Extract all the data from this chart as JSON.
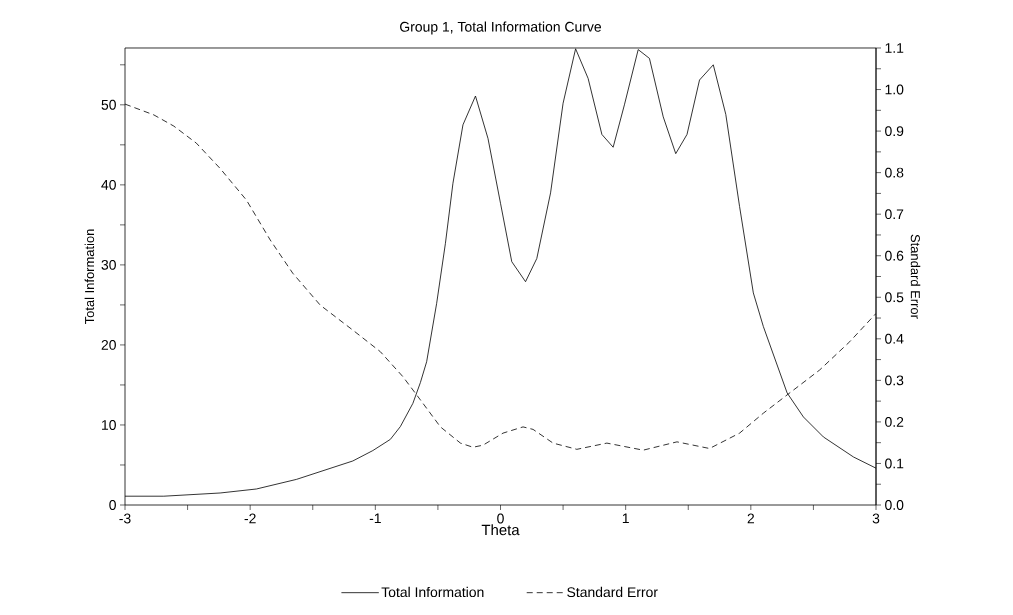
{
  "chart_data": {
    "type": "line",
    "title": "Group 1, Total Information Curve",
    "xlabel": "Theta",
    "ylabel": "Total Information",
    "y2label": "Standard Error",
    "xlim": [
      -3,
      3
    ],
    "xticks": [
      -3,
      {
        "value": -2.5,
        "label": null
      },
      -2,
      {
        "value": -1.5,
        "label": null
      },
      -1,
      {
        "value": -0.5,
        "label": null
      },
      0,
      {
        "value": 0.5,
        "label": null
      },
      1,
      {
        "value": 1.5,
        "label": null
      },
      2,
      {
        "value": 2.5,
        "label": null
      },
      3
    ],
    "ylim": [
      0,
      57.1
    ],
    "yticks": [
      0,
      {
        "value": 5,
        "label": null
      },
      10,
      {
        "value": 15,
        "label": null
      },
      20,
      {
        "value": 25,
        "label": null
      },
      30,
      {
        "value": 35,
        "label": null
      },
      40,
      {
        "value": 45,
        "label": null
      },
      50,
      {
        "value": 55,
        "label": null
      }
    ],
    "y2lim": [
      0,
      1.1
    ],
    "y2ticks": [
      {
        "value": 0,
        "label": "0.0"
      },
      {
        "value": 0.05,
        "label": null
      },
      0.1,
      {
        "value": 0.15,
        "label": null
      },
      0.2,
      {
        "value": 0.25,
        "label": null
      },
      0.3,
      {
        "value": 0.35,
        "label": null
      },
      0.4,
      {
        "value": 0.45,
        "label": null
      },
      0.5,
      {
        "value": 0.55,
        "label": null
      },
      0.6,
      {
        "value": 0.65,
        "label": null
      },
      0.7,
      {
        "value": 0.75,
        "label": null
      },
      0.8,
      {
        "value": 0.85,
        "label": null
      },
      0.9,
      {
        "value": 0.95,
        "label": null
      },
      {
        "value": 1.0,
        "label": "1.0"
      },
      {
        "value": 1.05,
        "label": null
      },
      1.1
    ],
    "legend": "bottom",
    "grid": false,
    "marker": "none",
    "series": [
      {
        "name": "Total Information",
        "color": "#000000",
        "line_style": "solid",
        "x": [
          -3,
          -2.69,
          -2.24,
          -1.95,
          -1.63,
          -1.18,
          -1.02,
          -0.88,
          -0.8,
          -0.7,
          -0.64,
          -0.59,
          -0.51,
          -0.44,
          -0.38,
          -0.3,
          -0.2,
          -0.1,
          0.0,
          0.09,
          0.2,
          0.29,
          0.4,
          0.5,
          0.6,
          0.7,
          0.81,
          0.9,
          0.99,
          1.1,
          1.19,
          1.3,
          1.4,
          1.49,
          1.59,
          1.7,
          1.8,
          1.91,
          2.02,
          2.1,
          2.29,
          2.42,
          2.58,
          2.82,
          3.0
        ],
        "values": [
          1.1,
          1.1,
          1.5,
          2.0,
          3.2,
          5.5,
          6.8,
          8.2,
          9.8,
          12.7,
          15.3,
          17.9,
          25.2,
          32.7,
          40.2,
          47.5,
          51.1,
          45.8,
          37.7,
          30.4,
          27.9,
          30.8,
          39.0,
          50.2,
          57.0,
          53.3,
          46.3,
          44.7,
          50.0,
          56.9,
          55.8,
          48.5,
          43.9,
          46.3,
          53.1,
          55.0,
          48.8,
          37.3,
          26.5,
          22.3,
          14.0,
          11.0,
          8.5,
          6.0,
          4.6
        ]
      },
      {
        "name": "Standard Error",
        "color": "#000000",
        "line_style": "dashed",
        "axis": "y2",
        "x": [
          -3,
          -2.77,
          -2.61,
          -2.43,
          -2.24,
          -2.03,
          -1.84,
          -1.66,
          -1.44,
          -1.18,
          -0.96,
          -0.78,
          -0.64,
          -0.48,
          -0.32,
          -0.22,
          -0.14,
          0.02,
          0.18,
          0.26,
          0.42,
          0.61,
          0.85,
          1.14,
          1.41,
          1.67,
          1.91,
          2.1,
          2.29,
          2.55,
          2.79,
          3.0
        ],
        "values": [
          0.965,
          0.939,
          0.912,
          0.871,
          0.81,
          0.734,
          0.638,
          0.558,
          0.481,
          0.421,
          0.369,
          0.309,
          0.253,
          0.188,
          0.149,
          0.139,
          0.144,
          0.173,
          0.188,
          0.182,
          0.149,
          0.134,
          0.149,
          0.132,
          0.152,
          0.136,
          0.173,
          0.221,
          0.265,
          0.325,
          0.393,
          0.461
        ]
      }
    ]
  }
}
